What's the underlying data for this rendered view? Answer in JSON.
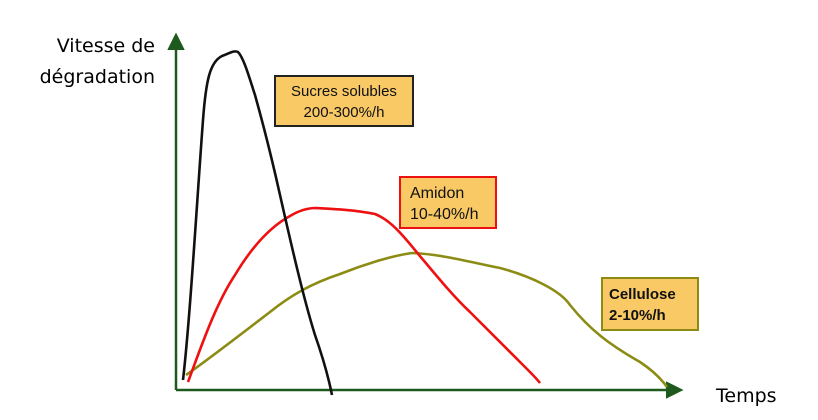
{
  "chart_data": {
    "type": "line",
    "title": "",
    "xlabel": "Temps",
    "ylabel": [
      "Vitesse de",
      "dégradation"
    ],
    "grid": false,
    "axis_color": "#1e5a1e",
    "series": [
      {
        "id": "sucres",
        "label": [
          "Sucres solubles",
          "200-300%/h"
        ],
        "color": "#111111",
        "label_border": "#222222",
        "label_fill": "#f8c965",
        "label_bold": false
      },
      {
        "id": "amidon",
        "label": [
          "Amidon",
          "10-40%/h"
        ],
        "color": "#ee1111",
        "label_border": "#ee1111",
        "label_fill": "#f8c965",
        "label_bold": false
      },
      {
        "id": "cellulose",
        "label": [
          "Cellulose",
          "2-10%/h"
        ],
        "color": "#8c8c14",
        "label_border": "#8c8c14",
        "label_fill": "#f8c965",
        "label_bold": true
      }
    ]
  }
}
